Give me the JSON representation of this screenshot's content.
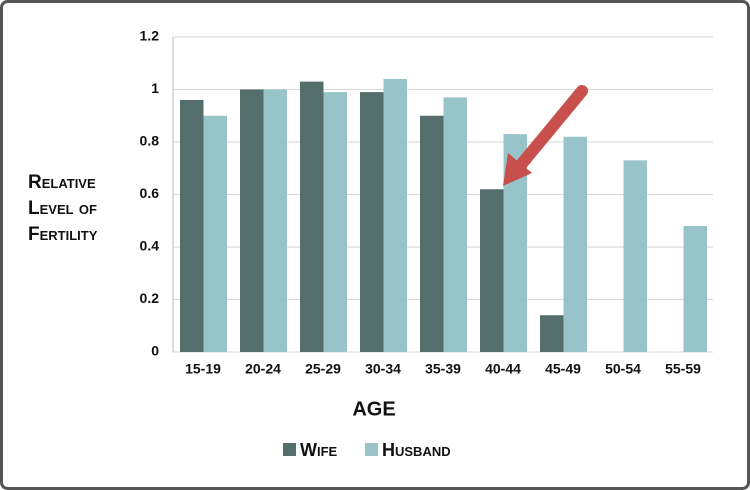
{
  "chart_data": {
    "type": "bar",
    "y_label_lines": [
      "Relative",
      "Level of",
      "Fertility"
    ],
    "x_label": "AGE",
    "categories": [
      "15-19",
      "20-24",
      "25-29",
      "30-34",
      "35-39",
      "40-44",
      "45-49",
      "50-54",
      "55-59"
    ],
    "series": [
      {
        "name": "Wife",
        "color": "#546e6c",
        "values": [
          0.96,
          1.0,
          1.03,
          0.99,
          0.9,
          0.62,
          0.14,
          null,
          null
        ]
      },
      {
        "name": "Husband",
        "color": "#98c4c9",
        "values": [
          0.9,
          1.0,
          0.99,
          1.04,
          0.97,
          0.83,
          0.82,
          0.73,
          0.48
        ]
      }
    ],
    "ylim": [
      0,
      1.2
    ],
    "yticks": [
      0,
      0.2,
      0.4,
      0.6,
      0.8,
      1,
      1.2
    ],
    "grid": true,
    "legend": "bottom"
  }
}
